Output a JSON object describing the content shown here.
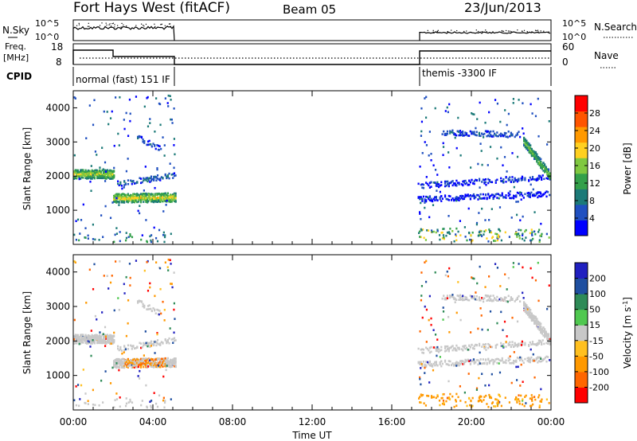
{
  "header": {
    "title": "Fort Hays West (fitACF)",
    "beam": "Beam 05",
    "date": "23/Jun/2013"
  },
  "noise_panel": {
    "left_label": "N.Sky",
    "right_label": "N.Search",
    "left_ticks": [
      "10^5",
      "10^0"
    ],
    "right_ticks": [
      "10^5",
      "10^0"
    ]
  },
  "freq_panel": {
    "label_line1": "Freq.",
    "label_line2": "[MHz]",
    "left_ticks": [
      "18",
      "8"
    ],
    "right_label": "Nave",
    "right_ticks": [
      "60",
      "0"
    ],
    "cpid_label": "CPID"
  },
  "cpid_segments": [
    {
      "label": "normal (fast) 151 IF",
      "start": "00:00",
      "end": "05:10"
    },
    {
      "label": "themis -3300 IF",
      "start": "17:15",
      "end": "24:00"
    }
  ],
  "colors": {
    "power": [
      "#0000ff",
      "#2050c0",
      "#1c7a78",
      "#33a04a",
      "#80c840",
      "#ffd020",
      "#ff9900",
      "#ff5500",
      "#ff0000"
    ],
    "velocity": [
      "#ff0000",
      "#ff6600",
      "#ff9900",
      "#ffc020",
      "#c8c8c8",
      "#50c850",
      "#2e8b57",
      "#1f4fa0",
      "#2020c0"
    ]
  },
  "chart_data": [
    {
      "type": "heatmap",
      "xlabel": "",
      "ylabel": "Slant Range [km]",
      "y_ticks": [
        "4000",
        "3000",
        "2000",
        "1000"
      ],
      "ylim": [
        0,
        4500
      ],
      "xlim": [
        "00:00",
        "24:00"
      ],
      "colorbar_label": "Power [dB]",
      "colorbar_ticks": [
        "28",
        "24",
        "20",
        "16",
        "12",
        "8",
        "4"
      ],
      "features": [
        {
          "name": "band",
          "start": 0.0,
          "end": 2.0,
          "range_start": 2080,
          "range_end": 2080,
          "power_center": 20
        },
        {
          "name": "band",
          "start": 2.0,
          "end": 5.1,
          "range_start": 1380,
          "range_end": 1400,
          "power_center": 22
        },
        {
          "name": "band",
          "start": 2.2,
          "end": 5.1,
          "range_start": 1800,
          "range_end": 2050,
          "power_center": 9
        },
        {
          "name": "band",
          "start": 3.2,
          "end": 4.3,
          "range_start": 3150,
          "range_end": 2850,
          "power_center": 8
        },
        {
          "name": "band",
          "start": 18.5,
          "end": 22.4,
          "range_start": 3300,
          "range_end": 3250,
          "power_center": 7
        },
        {
          "name": "band",
          "start": 22.6,
          "end": 23.9,
          "range_start": 3050,
          "range_end": 2050,
          "power_center": 17
        },
        {
          "name": "band",
          "start": 17.3,
          "end": 23.8,
          "range_start": 1750,
          "range_end": 2000,
          "power_center": 5
        },
        {
          "name": "band",
          "start": 17.3,
          "end": 23.8,
          "range_start": 1350,
          "range_end": 1500,
          "power_center": 4
        }
      ]
    },
    {
      "type": "heatmap",
      "xlabel": "Time UT",
      "ylabel": "Slant Range [km]",
      "y_ticks": [
        "4000",
        "3000",
        "2000",
        "1000"
      ],
      "ylim": [
        0,
        4500
      ],
      "xlim": [
        "00:00",
        "24:00"
      ],
      "x_ticks": [
        "00:00",
        "04:00",
        "08:00",
        "12:00",
        "16:00",
        "20:00",
        "00:00"
      ],
      "colorbar_label": "Velocity [m s",
      "colorbar_unit_sup": "-1",
      "colorbar_ticks": [
        "200",
        "100",
        "50",
        "15",
        "-15",
        "-50",
        "-100",
        "-200"
      ],
      "note": "same echo regions as power panel; mostly low velocity (grey) with orange negative velocities near 04:00"
    }
  ]
}
